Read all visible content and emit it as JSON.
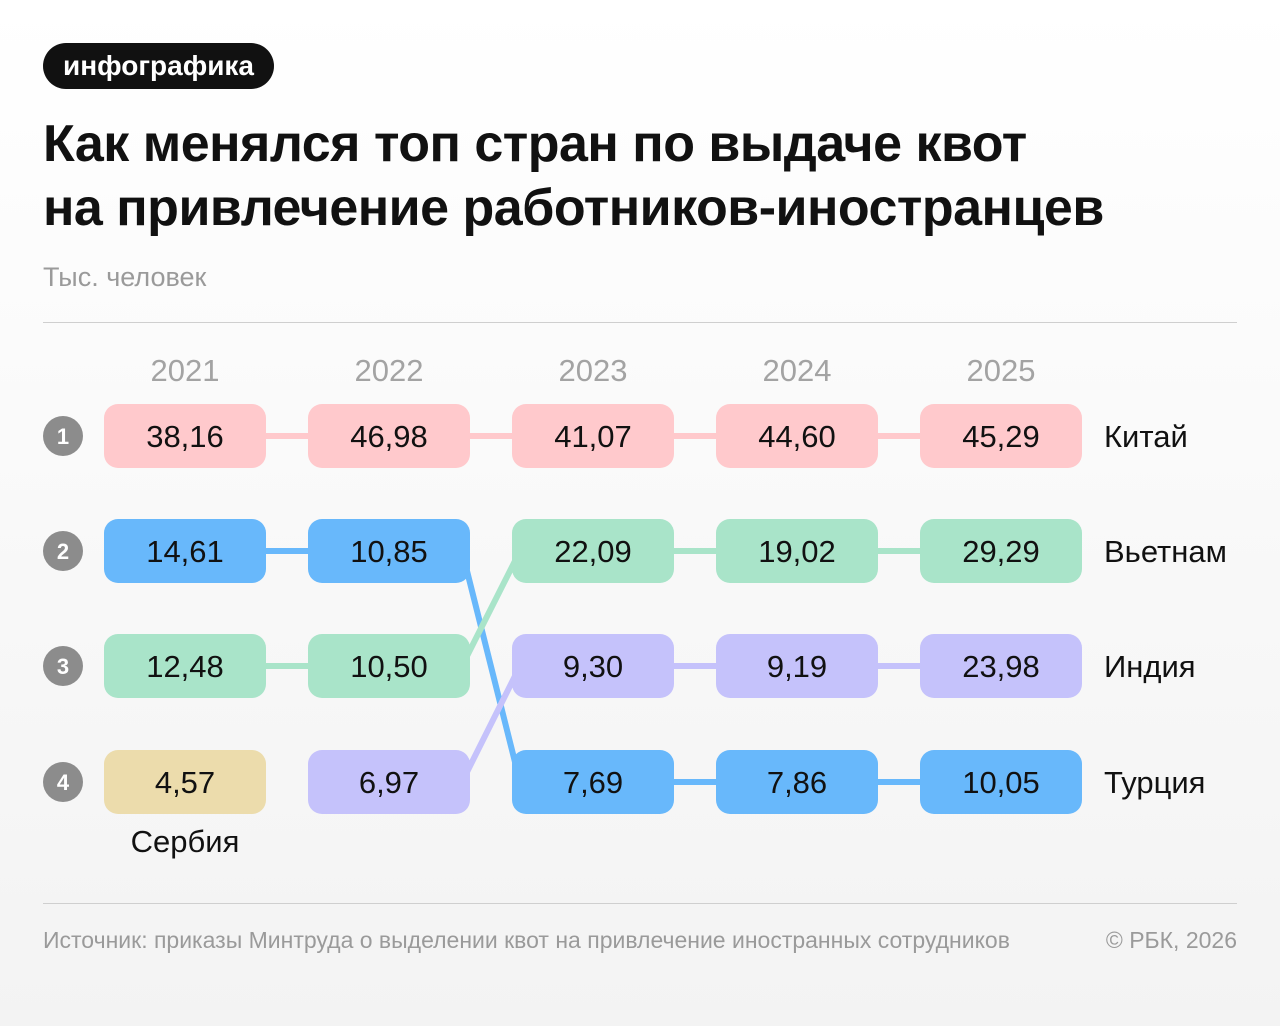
{
  "tag": "инфографика",
  "title_line1": "Как менялся топ стран по выдаче квот",
  "title_line2": "на привлечение работников-иностранцев",
  "subtitle": "Тыс. человек",
  "footer": {
    "source": "Источник: приказы Минтруда о выделении квот на привлечение иностранных сотрудников",
    "copyright": "© РБК, 2026"
  },
  "chart_data": {
    "type": "table",
    "title": "Как менялся топ стран по выдаче квот на привлечение работников-иностранцев",
    "unit": "Тыс. человек",
    "years": [
      "2021",
      "2022",
      "2023",
      "2024",
      "2025"
    ],
    "ranks": [
      "1",
      "2",
      "3",
      "4"
    ],
    "row_labels": [
      "Китай",
      "Вьетнам",
      "Индия",
      "Турция"
    ],
    "colors": {
      "Китай": "#ffc9cc",
      "Вьетнам": "#a9e4c9",
      "Индия": "#c5c2fb",
      "Турция": "#68b8fb",
      "Сербия": "#ecdcac"
    },
    "series": [
      {
        "name": "Китай",
        "values": [
          "38,16",
          "46,98",
          "41,07",
          "44,60",
          "45,29"
        ],
        "ranks": [
          1,
          1,
          1,
          1,
          1
        ]
      },
      {
        "name": "Турция",
        "values": [
          "14,61",
          "10,85",
          "7,69",
          "7,86",
          "10,05"
        ],
        "ranks": [
          2,
          2,
          4,
          4,
          4
        ]
      },
      {
        "name": "Вьетнам",
        "values": [
          "12,48",
          "10,50",
          "22,09",
          "19,02",
          "29,29"
        ],
        "ranks": [
          3,
          3,
          2,
          2,
          2
        ]
      },
      {
        "name": "Индия",
        "values": [
          null,
          "6,97",
          "9,30",
          "9,19",
          "23,98"
        ],
        "ranks": [
          null,
          4,
          3,
          3,
          3
        ]
      },
      {
        "name": "Сербия",
        "values": [
          "4,57",
          null,
          null,
          null,
          null
        ],
        "ranks": [
          4,
          null,
          null,
          null,
          null
        ]
      }
    ],
    "extra_label": "Сербия"
  }
}
